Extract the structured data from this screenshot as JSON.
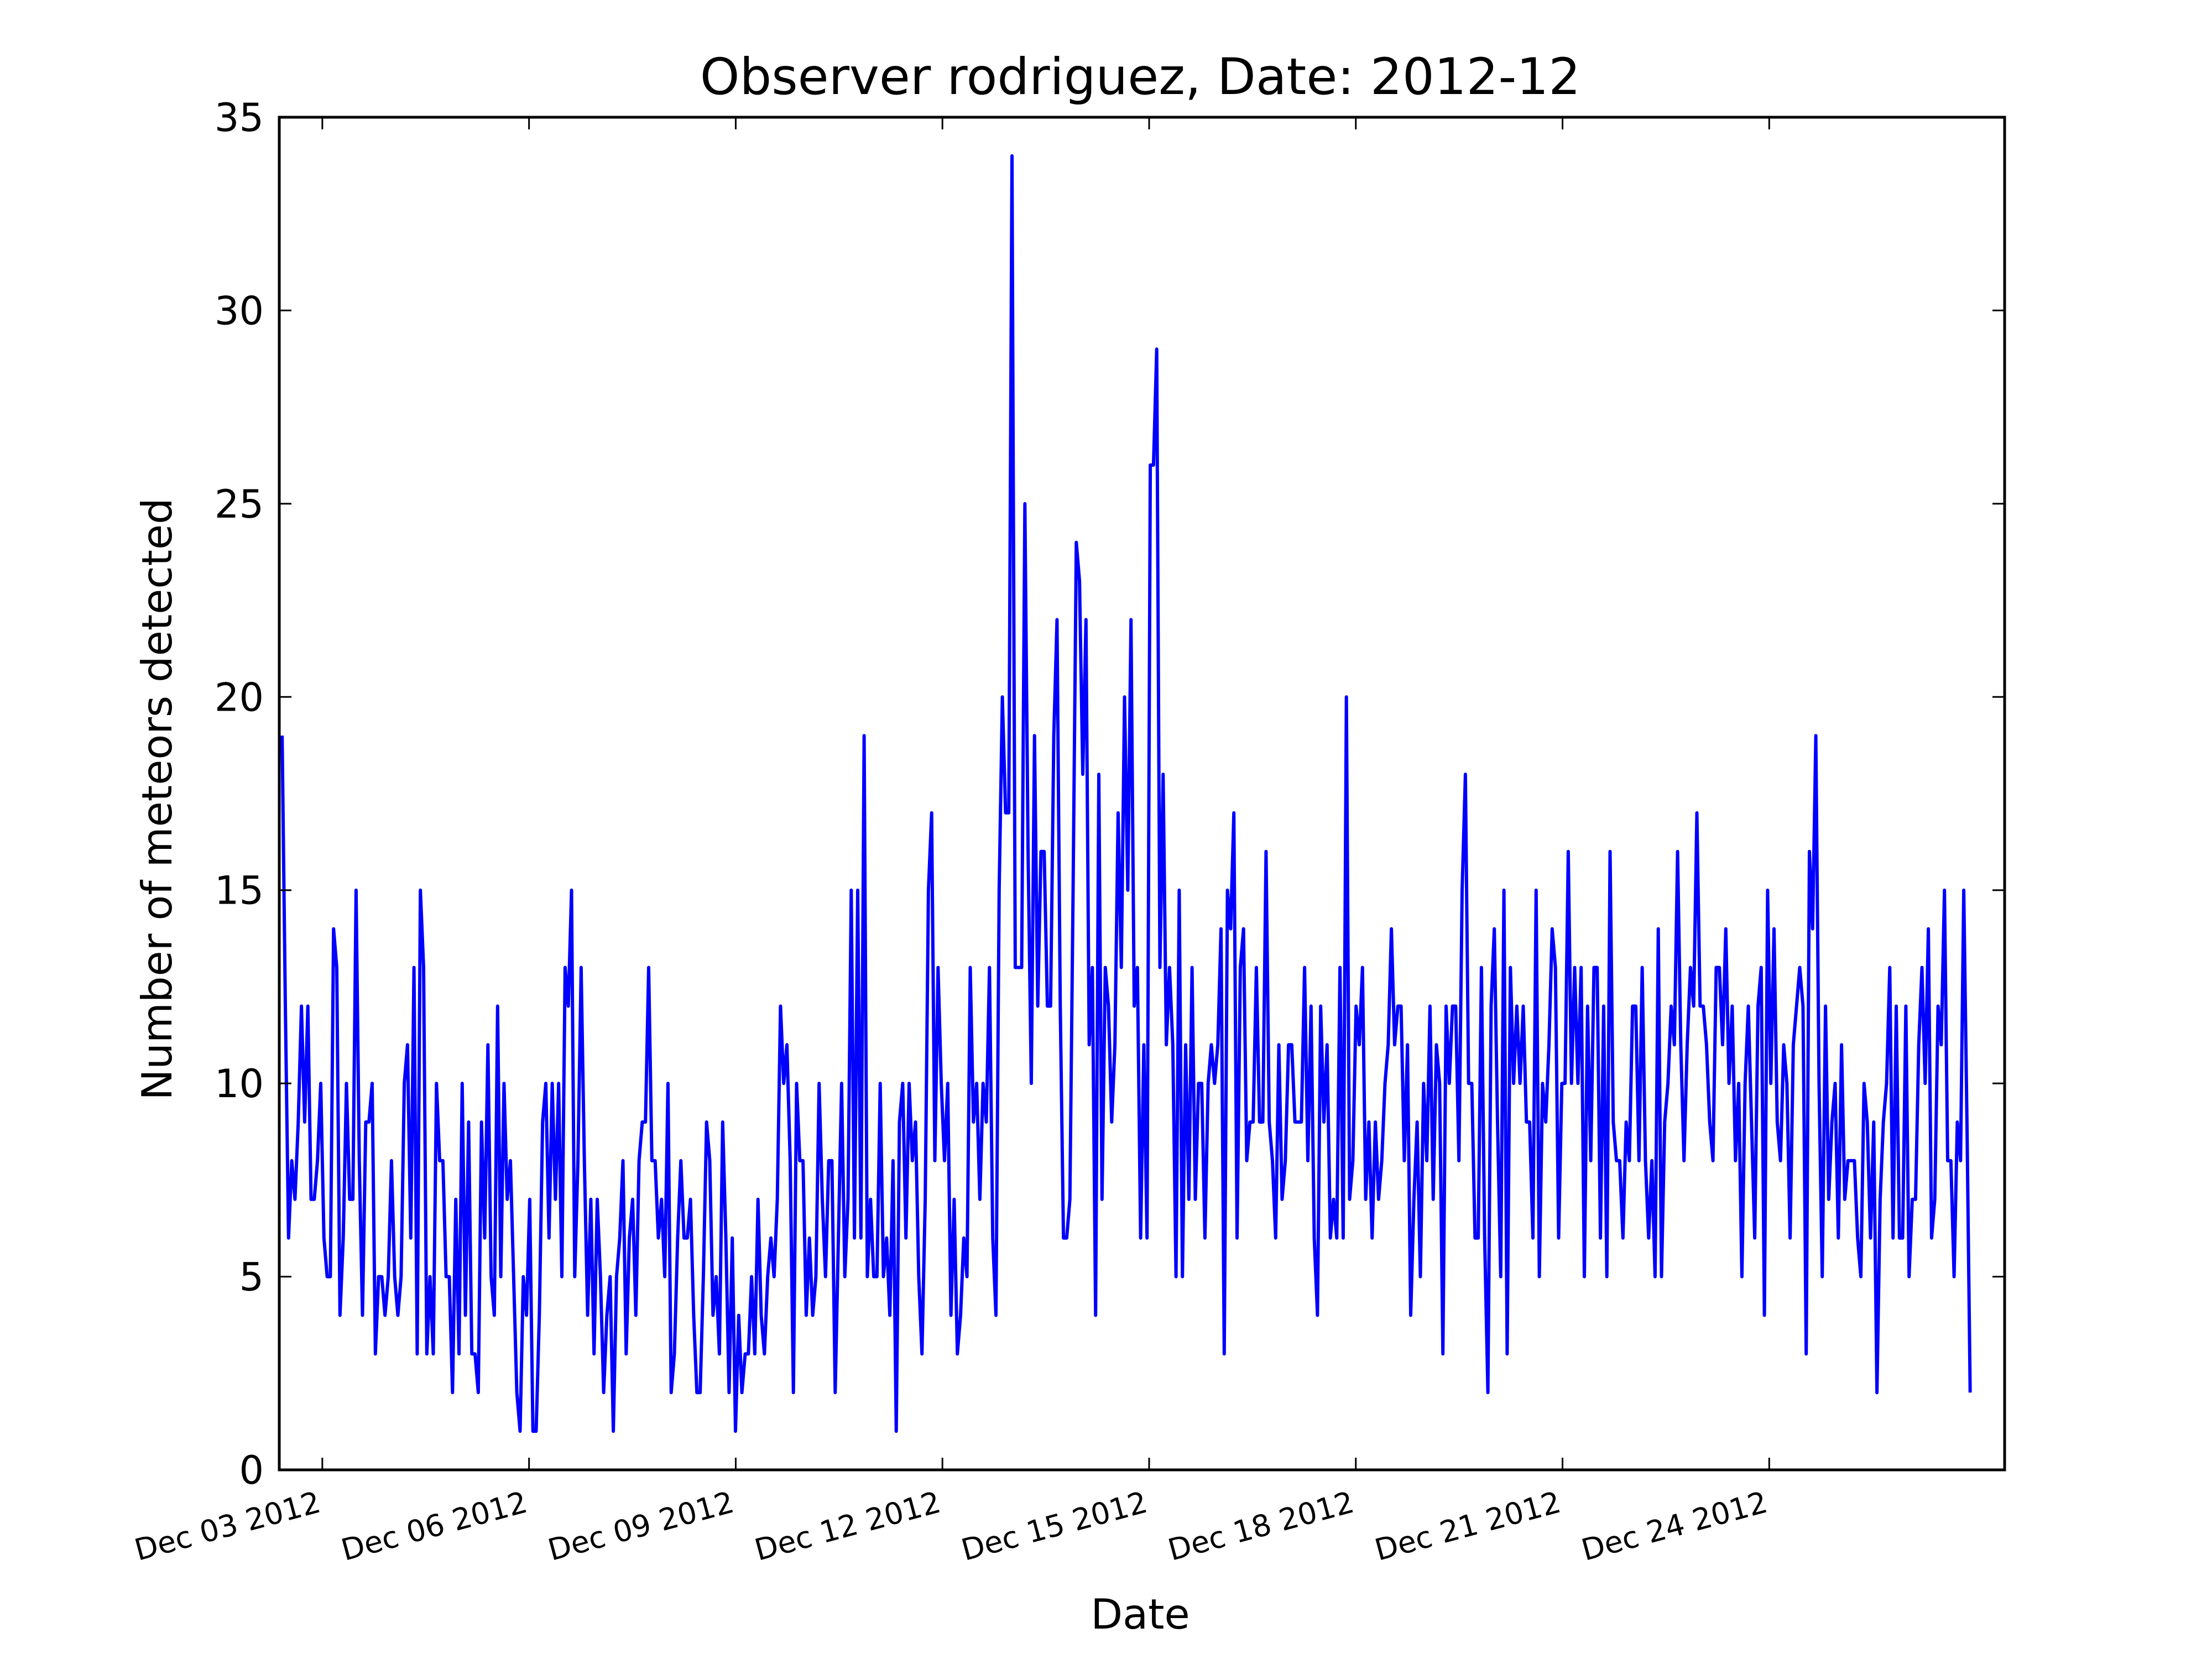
{
  "chart_data": {
    "type": "line",
    "title": "Observer rodriguez, Date: 2012-12",
    "xlabel": "Date",
    "ylabel": "Number of meteors detected",
    "x_type": "date",
    "xlim": [
      "2012-12-02 09:00",
      "2012-12-27 10:00"
    ],
    "ylim": [
      0,
      35
    ],
    "y_ticks": [
      0,
      5,
      10,
      15,
      20,
      25,
      30,
      35
    ],
    "x_ticks": [
      {
        "date": "2012-12-03",
        "label": "Dec 03 2012"
      },
      {
        "date": "2012-12-06",
        "label": "Dec 06 2012"
      },
      {
        "date": "2012-12-09",
        "label": "Dec 09 2012"
      },
      {
        "date": "2012-12-12",
        "label": "Dec 12 2012"
      },
      {
        "date": "2012-12-15",
        "label": "Dec 15 2012"
      },
      {
        "date": "2012-12-18",
        "label": "Dec 18 2012"
      },
      {
        "date": "2012-12-21",
        "label": "Dec 21 2012"
      },
      {
        "date": "2012-12-24",
        "label": "Dec 24 2012"
      }
    ],
    "grid": false,
    "legend": false,
    "series": [
      {
        "color": "#0000ff",
        "x_start": "2012-12-02 10:00",
        "x_end": "2012-12-26 22:00",
        "values": [
          19,
          12,
          6,
          8,
          7,
          9,
          12,
          9,
          12,
          7,
          7,
          8,
          10,
          6,
          5,
          5,
          14,
          13,
          4,
          6,
          10,
          7,
          7,
          15,
          8,
          4,
          9,
          9,
          10,
          3,
          5,
          5,
          4,
          5,
          8,
          5,
          4,
          5,
          10,
          11,
          6,
          13,
          3,
          15,
          13,
          3,
          5,
          3,
          10,
          8,
          8,
          5,
          5,
          2,
          7,
          3,
          10,
          4,
          9,
          3,
          3,
          2,
          9,
          6,
          11,
          5,
          4,
          12,
          5,
          10,
          7,
          8,
          5,
          2,
          1,
          5,
          4,
          7,
          1,
          1,
          4,
          9,
          10,
          6,
          10,
          7,
          10,
          5,
          13,
          12,
          15,
          5,
          8,
          13,
          8,
          4,
          7,
          3,
          7,
          5,
          2,
          4,
          5,
          1,
          5,
          6,
          8,
          3,
          6,
          7,
          4,
          8,
          9,
          9,
          13,
          8,
          8,
          6,
          7,
          5,
          10,
          2,
          3,
          6,
          8,
          6,
          6,
          7,
          4,
          2,
          2,
          5,
          9,
          8,
          4,
          5,
          3,
          9,
          6,
          2,
          6,
          1,
          4,
          2,
          3,
          3,
          5,
          3,
          7,
          4,
          3,
          5,
          6,
          5,
          7,
          12,
          10,
          11,
          8,
          2,
          10,
          8,
          8,
          4,
          6,
          4,
          5,
          10,
          7,
          5,
          8,
          8,
          2,
          6,
          10,
          5,
          7,
          15,
          6,
          15,
          6,
          19,
          5,
          7,
          5,
          5,
          10,
          5,
          6,
          4,
          8,
          1,
          9,
          10,
          6,
          10,
          8,
          9,
          5,
          3,
          7,
          15,
          17,
          8,
          13,
          10,
          8,
          10,
          4,
          7,
          3,
          4,
          6,
          5,
          13,
          9,
          10,
          7,
          10,
          9,
          13,
          6,
          4,
          15,
          20,
          17,
          17,
          34,
          13,
          13,
          13,
          25,
          16,
          10,
          19,
          12,
          16,
          16,
          12,
          12,
          19,
          22,
          12,
          6,
          6,
          7,
          15,
          24,
          23,
          18,
          22,
          11,
          13,
          4,
          18,
          7,
          13,
          12,
          9,
          11,
          17,
          13,
          20,
          15,
          22,
          12,
          13,
          6,
          11,
          6,
          26,
          26,
          29,
          13,
          18,
          11,
          13,
          11,
          5,
          15,
          5,
          11,
          7,
          13,
          7,
          10,
          10,
          6,
          10,
          11,
          10,
          11,
          14,
          3,
          15,
          14,
          17,
          6,
          13,
          14,
          8,
          9,
          9,
          13,
          9,
          9,
          16,
          9,
          8,
          6,
          11,
          7,
          8,
          11,
          11,
          9,
          9,
          9,
          13,
          8,
          12,
          6,
          4,
          12,
          9,
          11,
          6,
          7,
          6,
          13,
          6,
          20,
          7,
          8,
          12,
          11,
          13,
          7,
          9,
          6,
          9,
          7,
          8,
          10,
          11,
          14,
          11,
          12,
          12,
          8,
          11,
          4,
          7,
          9,
          5,
          10,
          8,
          12,
          7,
          11,
          10,
          3,
          12,
          10,
          12,
          12,
          8,
          15,
          18,
          10,
          10,
          6,
          6,
          13,
          6,
          2,
          12,
          14,
          9,
          5,
          15,
          3,
          13,
          10,
          12,
          10,
          12,
          9,
          9,
          6,
          15,
          5,
          10,
          9,
          11,
          14,
          13,
          6,
          10,
          10,
          16,
          10,
          13,
          10,
          13,
          5,
          12,
          8,
          13,
          13,
          6,
          12,
          5,
          16,
          9,
          8,
          8,
          6,
          9,
          8,
          12,
          12,
          8,
          13,
          8,
          6,
          8,
          5,
          14,
          5,
          9,
          10,
          12,
          11,
          16,
          11,
          8,
          11,
          13,
          12,
          17,
          12,
          12,
          11,
          9,
          8,
          13,
          13,
          11,
          14,
          10,
          12,
          8,
          10,
          5,
          10,
          12,
          9,
          6,
          12,
          13,
          4,
          15,
          10,
          14,
          9,
          8,
          11,
          10,
          6,
          11,
          12,
          13,
          12,
          3,
          16,
          14,
          19,
          10,
          5,
          12,
          7,
          9,
          10,
          6,
          11,
          7,
          8,
          8,
          8,
          6,
          5,
          10,
          9,
          6,
          9,
          2,
          7,
          9,
          10,
          13,
          6,
          12,
          6,
          6,
          12,
          5,
          7,
          7,
          11,
          13,
          10,
          14,
          6,
          7,
          12,
          11,
          15,
          8,
          8,
          5,
          9,
          8,
          15,
          9,
          2
        ]
      }
    ]
  }
}
